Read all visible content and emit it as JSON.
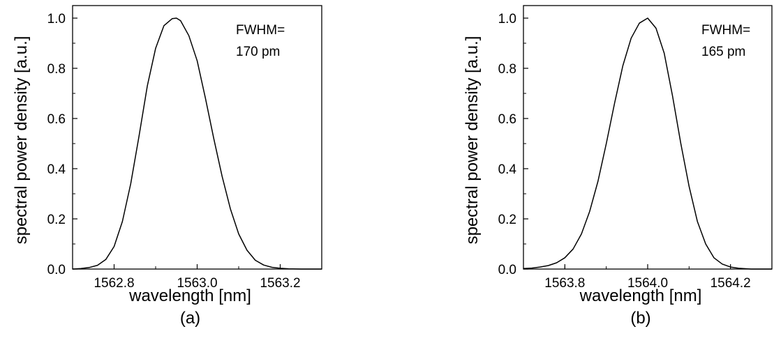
{
  "chart_data": [
    {
      "type": "line",
      "panel_label": "(a)",
      "xlabel": "wavelength [nm]",
      "ylabel": "spectral power density [a.u.]",
      "xlim": [
        1562.7,
        1563.3
      ],
      "ylim": [
        0.0,
        1.05
      ],
      "x_ticks": [
        1562.8,
        1563.0,
        1563.2
      ],
      "x_tick_labels": [
        "1562.8",
        "1563.0",
        "1563.2"
      ],
      "y_ticks": [
        0.0,
        0.2,
        0.4,
        0.6,
        0.8,
        1.0
      ],
      "y_tick_labels": [
        "0.0",
        "0.2",
        "0.4",
        "0.6",
        "0.8",
        "1.0"
      ],
      "annotation": [
        "FWHM=",
        "170 pm"
      ],
      "grid": false,
      "series": [
        {
          "x": [
            1562.7,
            1562.72,
            1562.74,
            1562.76,
            1562.78,
            1562.8,
            1562.82,
            1562.84,
            1562.86,
            1562.88,
            1562.9,
            1562.92,
            1562.94,
            1562.95,
            1562.96,
            1562.98,
            1563.0,
            1563.02,
            1563.04,
            1563.06,
            1563.08,
            1563.1,
            1563.12,
            1563.14,
            1563.16,
            1563.18,
            1563.2,
            1563.22,
            1563.25,
            1563.28,
            1563.3
          ],
          "values": [
            0.0,
            0.002,
            0.006,
            0.015,
            0.038,
            0.09,
            0.19,
            0.34,
            0.53,
            0.73,
            0.88,
            0.97,
            0.998,
            1.0,
            0.99,
            0.93,
            0.83,
            0.68,
            0.52,
            0.37,
            0.24,
            0.14,
            0.075,
            0.035,
            0.016,
            0.007,
            0.003,
            0.001,
            0.0,
            0.0,
            0.0
          ]
        }
      ]
    },
    {
      "type": "line",
      "panel_label": "(b)",
      "xlabel": "wavelength [nm]",
      "ylabel": "spectral power density [a.u.]",
      "xlim": [
        1563.7,
        1564.3
      ],
      "ylim": [
        0.0,
        1.05
      ],
      "x_ticks": [
        1563.8,
        1564.0,
        1564.2
      ],
      "x_tick_labels": [
        "1563.8",
        "1564.0",
        "1564.2"
      ],
      "y_ticks": [
        0.0,
        0.2,
        0.4,
        0.6,
        0.8,
        1.0
      ],
      "y_tick_labels": [
        "0.0",
        "0.2",
        "0.4",
        "0.6",
        "0.8",
        "1.0"
      ],
      "annotation": [
        "FWHM=",
        "165 pm"
      ],
      "grid": false,
      "series": [
        {
          "x": [
            1563.7,
            1563.72,
            1563.74,
            1563.76,
            1563.78,
            1563.8,
            1563.82,
            1563.84,
            1563.86,
            1563.88,
            1563.9,
            1563.92,
            1563.94,
            1563.96,
            1563.98,
            1564.0,
            1564.02,
            1564.04,
            1564.06,
            1564.08,
            1564.1,
            1564.12,
            1564.14,
            1564.16,
            1564.18,
            1564.2,
            1564.22,
            1564.25,
            1564.28,
            1564.3
          ],
          "values": [
            0.002,
            0.004,
            0.008,
            0.014,
            0.025,
            0.045,
            0.08,
            0.14,
            0.23,
            0.35,
            0.5,
            0.66,
            0.81,
            0.92,
            0.98,
            1.0,
            0.96,
            0.86,
            0.69,
            0.5,
            0.33,
            0.19,
            0.1,
            0.045,
            0.02,
            0.008,
            0.003,
            0.0,
            0.0,
            0.0
          ]
        }
      ]
    }
  ]
}
